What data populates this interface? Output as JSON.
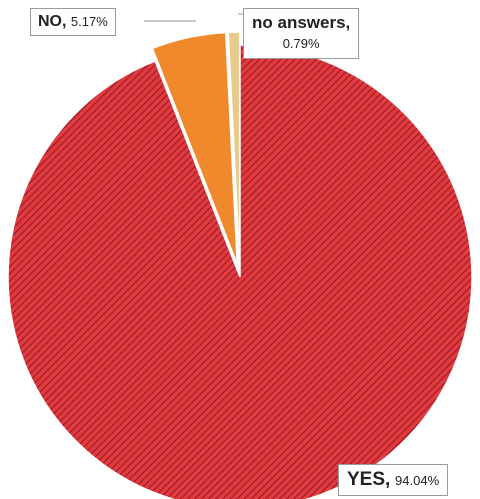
{
  "chart_data": {
    "type": "pie",
    "slices": [
      {
        "label": "YES",
        "value": 94.04,
        "display": "94.04%",
        "color": "#d42e35",
        "pattern": "diagonal-hatch"
      },
      {
        "label": "NO",
        "value": 5.17,
        "display": "5.17%",
        "color": "#f0892c",
        "pattern": "none"
      },
      {
        "label": "no answers",
        "value": 0.79,
        "display": "0.79%",
        "color": "#e8c98a",
        "pattern": "none"
      }
    ],
    "start_angle_deg": 0,
    "direction": "counterclockwise",
    "exploded": [
      "NO",
      "no answers"
    ],
    "legend": "none",
    "data_labels": "category, percentage"
  }
}
